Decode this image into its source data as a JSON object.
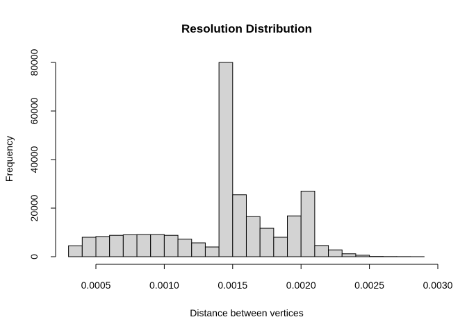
{
  "chart_data": {
    "type": "bar",
    "title": "Resolution Distribution",
    "xlabel": "Distance between vertices",
    "ylabel": "Frequency",
    "bar_color": "#d3d3d3",
    "border_color": "#000000",
    "grid": false,
    "legend": "none",
    "xlim": [
      0.0005,
      0.003
    ],
    "ylim": [
      0,
      80000
    ],
    "x_ticks": [
      0.0005,
      0.001,
      0.0015,
      0.002,
      0.0025,
      0.003
    ],
    "x_tick_labels": [
      "0.0005",
      "0.0010",
      "0.0015",
      "0.0020",
      "0.0025",
      "0.0030"
    ],
    "y_ticks": [
      0,
      20000,
      40000,
      60000,
      80000
    ],
    "y_tick_labels": [
      "0",
      "20000",
      "40000",
      "60000",
      "80000"
    ],
    "bin_width": 0.0001,
    "bins": [
      {
        "start": 0.0003,
        "end": 0.0004,
        "count": 4500
      },
      {
        "start": 0.0004,
        "end": 0.0005,
        "count": 8000
      },
      {
        "start": 0.0005,
        "end": 0.0006,
        "count": 8300
      },
      {
        "start": 0.0006,
        "end": 0.0007,
        "count": 8800
      },
      {
        "start": 0.0007,
        "end": 0.0008,
        "count": 9000
      },
      {
        "start": 0.0008,
        "end": 0.0009,
        "count": 9100
      },
      {
        "start": 0.0009,
        "end": 0.001,
        "count": 9100
      },
      {
        "start": 0.001,
        "end": 0.0011,
        "count": 8800
      },
      {
        "start": 0.0011,
        "end": 0.0012,
        "count": 7200
      },
      {
        "start": 0.0012,
        "end": 0.0013,
        "count": 5700
      },
      {
        "start": 0.0013,
        "end": 0.0014,
        "count": 4000
      },
      {
        "start": 0.0014,
        "end": 0.0015,
        "count": 80000
      },
      {
        "start": 0.0015,
        "end": 0.0016,
        "count": 25500
      },
      {
        "start": 0.0016,
        "end": 0.0017,
        "count": 16500
      },
      {
        "start": 0.0017,
        "end": 0.0018,
        "count": 11700
      },
      {
        "start": 0.0018,
        "end": 0.0019,
        "count": 8000
      },
      {
        "start": 0.0019,
        "end": 0.002,
        "count": 16800
      },
      {
        "start": 0.002,
        "end": 0.0021,
        "count": 27000
      },
      {
        "start": 0.0021,
        "end": 0.0022,
        "count": 4600
      },
      {
        "start": 0.0022,
        "end": 0.0023,
        "count": 2800
      },
      {
        "start": 0.0023,
        "end": 0.0024,
        "count": 1200
      },
      {
        "start": 0.0024,
        "end": 0.0025,
        "count": 600
      },
      {
        "start": 0.0025,
        "end": 0.0026,
        "count": 100
      },
      {
        "start": 0.0026,
        "end": 0.0027,
        "count": 50
      },
      {
        "start": 0.0027,
        "end": 0.0028,
        "count": 30
      },
      {
        "start": 0.0028,
        "end": 0.0029,
        "count": 10
      }
    ]
  }
}
